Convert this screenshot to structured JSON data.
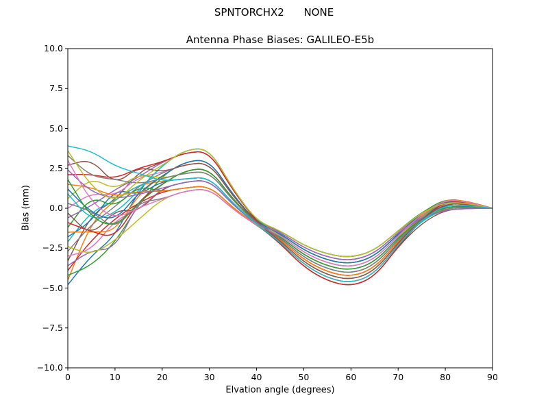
{
  "chart_data": {
    "type": "line",
    "suptitle": "SPNTORCHX2      NONE",
    "title": "Antenna Phase Biases: GALILEO-E5b",
    "xlabel": "Elvation angle (degrees)",
    "ylabel": "Bias (mm)",
    "xlim": [
      0,
      90
    ],
    "ylim": [
      -10,
      10
    ],
    "grid": false,
    "legend": "none",
    "frame_color": "#000000",
    "xticks": {
      "values": [
        0,
        10,
        20,
        30,
        40,
        50,
        60,
        70,
        80,
        90
      ],
      "labels": [
        "0",
        "10",
        "20",
        "30",
        "40",
        "50",
        "60",
        "70",
        "80",
        "90"
      ]
    },
    "yticks": {
      "values": [
        -10,
        -7.5,
        -5,
        -2.5,
        0,
        2.5,
        5,
        7.5,
        10
      ],
      "labels": [
        "−10.0",
        "−7.5",
        "−5.0",
        "−2.5",
        "0.0",
        "2.5",
        "5.0",
        "7.5",
        "10.0"
      ]
    },
    "colors": [
      "#1f77b4",
      "#ff7f0e",
      "#2ca02c",
      "#d62728",
      "#9467bd",
      "#8c564b",
      "#e377c2",
      "#7f7f7f",
      "#bcbd22",
      "#17becf"
    ],
    "x": [
      0,
      5,
      10,
      15,
      20,
      25,
      30,
      35,
      40,
      45,
      50,
      55,
      60,
      65,
      70,
      75,
      80,
      85,
      90
    ],
    "series": [
      [
        -4.8,
        -2.96,
        -1.75,
        1.12,
        2.7,
        3.68,
        3.75,
        1.2,
        -0.8,
        -1.67,
        -2.78,
        -3.44,
        -3.7,
        -3.2,
        -1.74,
        -0.41,
        0.4,
        0.29,
        0
      ],
      [
        -4.5,
        -0.88,
        0.53,
        1.45,
        1.7,
        1.84,
        1.95,
        0.3,
        -1.0,
        -1.85,
        -3.08,
        -3.81,
        -4.1,
        -3.57,
        -1.96,
        -0.6,
        0.2,
        0.17,
        0
      ],
      [
        -4.2,
        -3.59,
        -2.15,
        0.22,
        2.04,
        2.94,
        3.03,
        0.84,
        -0.88,
        -1.4,
        -2.33,
        -2.88,
        -3.1,
        -2.65,
        -1.41,
        -0.23,
        0.5,
        0.35,
        0
      ],
      [
        -3.9,
        -1.99,
        -0.65,
        0.34,
        1.04,
        1.29,
        1.41,
        0.03,
        -1.06,
        -2.12,
        -3.53,
        -4.37,
        -4.7,
        -4.12,
        -2.29,
        -0.53,
        0.6,
        0.41,
        0
      ],
      [
        -3.6,
        -2.62,
        -2.55,
        0.41,
        1.52,
        2.39,
        2.49,
        0.57,
        -0.94,
        -1.58,
        -2.63,
        -3.26,
        -3.5,
        -3.02,
        -1.63,
        -0.52,
        0.1,
        0.11,
        0
      ],
      [
        -3.3,
        -0.38,
        0.5,
        2.28,
        2.9,
        3.5,
        3.57,
        1.11,
        -0.82,
        -1.94,
        -3.23,
        -4.0,
        -4.3,
        -3.76,
        -2.07,
        -0.52,
        0.45,
        0.32,
        0
      ],
      [
        -3.0,
        -2.61,
        -0.75,
        -0.09,
        1.26,
        1.66,
        1.77,
        0.21,
        -1.02,
        -1.76,
        -2.93,
        -3.63,
        -3.9,
        -3.39,
        -1.85,
        -0.71,
        -0.1,
        -0.01,
        0
      ],
      [
        -2.7,
        -1.01,
        0.1,
        1.38,
        2.24,
        2.76,
        2.85,
        0.75,
        -0.9,
        -2.21,
        -3.68,
        -4.56,
        -4.9,
        -4.31,
        -2.4,
        -0.73,
        0.3,
        0.23,
        0
      ],
      [
        -2.4,
        -2.92,
        -2.03,
        -0.7,
        0.58,
        1.1,
        1.23,
        -0.06,
        -1.08,
        -1.49,
        -2.48,
        -3.07,
        -3.3,
        -2.84,
        -1.52,
        -0.25,
        0.55,
        0.38,
        0
      ],
      [
        -2.1,
        -0.2,
        0.47,
        1.47,
        1.86,
        2.21,
        2.31,
        0.48,
        -0.96,
        -2.03,
        -3.38,
        -4.19,
        -4.5,
        -3.94,
        -2.18,
        -0.79,
        0.0,
        0.05,
        0
      ],
      [
        -1.8,
        -0.83,
        1.2,
        0.82,
        1.7,
        1.84,
        1.95,
        0.3,
        -1.0,
        -1.4,
        -2.33,
        -2.88,
        -3.1,
        -2.65,
        -1.41,
        -0.38,
        0.2,
        0.17,
        0
      ],
      [
        -1.5,
        -1.47,
        -1.48,
        0.89,
        2.04,
        2.94,
        3.03,
        0.84,
        -0.88,
        -2.12,
        -3.53,
        -4.37,
        -4.7,
        -4.12,
        -2.29,
        -0.58,
        0.5,
        0.35,
        0
      ],
      [
        -1.2,
        0.78,
        0.03,
        1.41,
        1.04,
        1.29,
        1.41,
        0.03,
        -1.06,
        -1.58,
        -2.63,
        -3.26,
        -3.5,
        -3.02,
        -1.63,
        -0.27,
        0.6,
        0.41,
        0
      ],
      [
        -0.9,
        -1.46,
        -1.88,
        0.48,
        1.52,
        2.39,
        2.49,
        0.57,
        -0.94,
        -1.94,
        -3.23,
        -4.0,
        -4.3,
        -3.76,
        -2.07,
        -0.7,
        0.1,
        0.11,
        0
      ],
      [
        -0.6,
        0.15,
        1.17,
        1.95,
        2.9,
        3.5,
        3.57,
        1.11,
        -0.82,
        -1.76,
        -2.93,
        -3.63,
        -3.9,
        -3.39,
        -1.85,
        -0.43,
        0.45,
        0.32,
        0
      ],
      [
        -0.3,
        -1.77,
        -0.08,
        -0.22,
        1.26,
        1.66,
        1.77,
        0.21,
        -1.02,
        -2.21,
        -3.68,
        -4.56,
        -4.9,
        -4.31,
        -2.4,
        -0.93,
        -0.1,
        -0.01,
        0
      ],
      [
        0.0,
        0.96,
        0.77,
        1.95,
        2.24,
        2.76,
        2.85,
        0.75,
        -0.9,
        -1.49,
        -2.48,
        -3.07,
        -3.3,
        -2.84,
        -1.52,
        -0.38,
        0.3,
        0.23,
        0
      ],
      [
        0.3,
        -0.16,
        -1.36,
        0.37,
        0.58,
        1.1,
        1.23,
        -0.06,
        -1.08,
        -2.03,
        -3.38,
        -4.19,
        -4.5,
        -3.94,
        -2.18,
        -0.52,
        0.55,
        0.38,
        0
      ],
      [
        0.6,
        1.93,
        1.14,
        2.14,
        1.86,
        2.21,
        2.31,
        0.48,
        -0.96,
        -1.67,
        -2.78,
        -3.44,
        -3.7,
        -3.2,
        -1.74,
        -0.61,
        0.0,
        0.05,
        0
      ],
      [
        0.9,
        -0.79,
        -0.33,
        1.09,
        2.7,
        3.68,
        3.75,
        1.2,
        -0.8,
        -1.85,
        -3.08,
        -3.81,
        -4.1,
        -3.57,
        -1.96,
        -0.5,
        0.4,
        0.29,
        0
      ],
      [
        1.2,
        -0.3,
        -0.8,
        0.96,
        2.04,
        2.94,
        3.03,
        0.84,
        -0.88,
        -1.58,
        -2.63,
        -3.26,
        -3.5,
        -3.02,
        -1.63,
        -0.32,
        0.5,
        0.35,
        0
      ],
      [
        1.5,
        1.31,
        0.71,
        1.08,
        1.04,
        1.29,
        1.41,
        0.03,
        -1.06,
        -1.94,
        -3.23,
        -4.0,
        -4.3,
        -3.76,
        -2.07,
        -0.45,
        0.6,
        0.41,
        0
      ],
      [
        1.8,
        -0.61,
        -1.2,
        0.35,
        1.52,
        2.39,
        2.49,
        0.57,
        -0.94,
        -1.76,
        -2.93,
        -3.63,
        -3.9,
        -3.39,
        -1.85,
        -0.61,
        0.1,
        0.11,
        0
      ],
      [
        2.1,
        2.12,
        1.85,
        2.52,
        2.9,
        3.5,
        3.57,
        1.11,
        -0.82,
        -2.21,
        -3.68,
        -4.56,
        -4.9,
        -4.31,
        -2.4,
        -0.65,
        0.45,
        0.32,
        0
      ],
      [
        2.4,
        1.0,
        0.6,
        0.85,
        1.26,
        1.66,
        1.77,
        0.21,
        -1.02,
        -1.49,
        -2.48,
        -3.07,
        -3.3,
        -2.84,
        -1.52,
        -0.58,
        -0.1,
        -0.01,
        0
      ],
      [
        2.7,
        3.09,
        1.45,
        2.62,
        2.24,
        2.76,
        2.85,
        0.75,
        -0.9,
        -2.03,
        -3.38,
        -4.19,
        -4.5,
        -3.94,
        -2.18,
        -0.64,
        0.3,
        0.23,
        0
      ],
      [
        3.0,
        0.37,
        -0.68,
        0.04,
        0.58,
        1.1,
        1.23,
        -0.06,
        -1.08,
        -1.67,
        -2.78,
        -3.44,
        -3.7,
        -3.2,
        -1.74,
        -0.34,
        0.55,
        0.38,
        0
      ],
      [
        3.3,
        1.98,
        1.82,
        1.51,
        1.86,
        2.21,
        2.31,
        0.48,
        -0.96,
        -1.85,
        -3.08,
        -3.81,
        -4.1,
        -3.57,
        -1.96,
        -0.7,
        0.0,
        0.05,
        0
      ],
      [
        3.6,
        1.34,
        0.35,
        1.76,
        2.7,
        3.68,
        3.75,
        1.2,
        -0.8,
        -1.4,
        -2.33,
        -2.88,
        -3.1,
        -2.65,
        -1.41,
        -0.28,
        0.4,
        0.29,
        0
      ],
      [
        3.9,
        3.59,
        2.63,
        2.19,
        1.7,
        1.84,
        1.95,
        0.3,
        -1.0,
        -2.12,
        -3.53,
        -4.37,
        -4.7,
        -4.12,
        -2.29,
        -0.73,
        0.2,
        0.17,
        0
      ]
    ]
  }
}
